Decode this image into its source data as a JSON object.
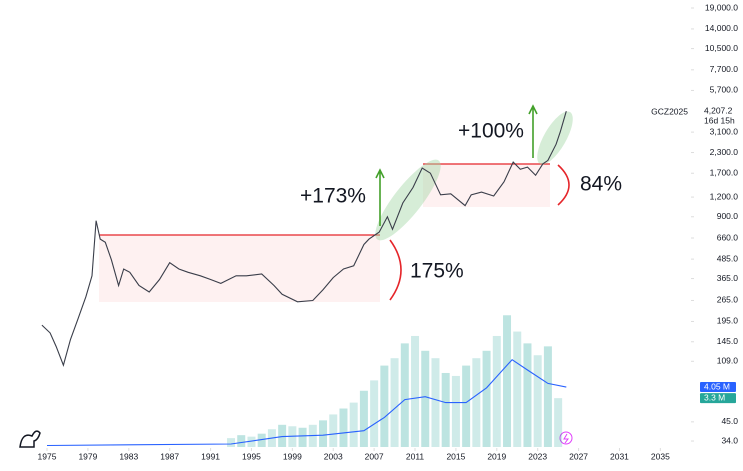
{
  "chart_data": {
    "type": "line",
    "symbol": "GCZ2025",
    "countdown": "16d 15h",
    "log_scale": true,
    "grid": false,
    "xlim": [
      1970.4,
      2037.9
    ],
    "xticks": [
      1975,
      1979,
      1983,
      1987,
      1991,
      1995,
      1999,
      2003,
      2007,
      2011,
      2015,
      2019,
      2023,
      2027,
      2031,
      2035
    ],
    "ylim": [
      25.4,
      21360
    ],
    "yticks": [
      {
        "value": 19000,
        "label": "19,000.0"
      },
      {
        "value": 14000,
        "label": "14,000.0"
      },
      {
        "value": 10500,
        "label": "10,500.0"
      },
      {
        "value": 7700,
        "label": "7,700.0"
      },
      {
        "value": 5700,
        "label": "5,700.0"
      },
      {
        "value": 3100,
        "label": "3,100.0"
      },
      {
        "value": 2300,
        "label": "2,300.0"
      },
      {
        "value": 1700,
        "label": "1,700.0"
      },
      {
        "value": 1200,
        "label": "1,200.0"
      },
      {
        "value": 900,
        "label": "900.0"
      },
      {
        "value": 660,
        "label": "660.0"
      },
      {
        "value": 485,
        "label": "485.0"
      },
      {
        "value": 365,
        "label": "365.0"
      },
      {
        "value": 265,
        "label": "265.0"
      },
      {
        "value": 195,
        "label": "195.0"
      },
      {
        "value": 145,
        "label": "145.0"
      },
      {
        "value": 109,
        "label": "109.0"
      },
      {
        "value": 45,
        "label": "45.0"
      },
      {
        "value": 34,
        "label": "34.0"
      }
    ],
    "y2lim": [
      0,
      30.2
    ],
    "series": [
      {
        "kind": "price",
        "color": "#3a3e4a",
        "x": [
          1974.5,
          1975.3,
          1975.9,
          1976.6,
          1977.3,
          1978,
          1978.8,
          1979.4,
          1979.8,
          1980.2,
          1980.7,
          1981.3,
          1982,
          1982.5,
          1983.1,
          1984,
          1985,
          1986,
          1987,
          1987.9,
          1988.8,
          1990,
          1991,
          1992,
          1993.5,
          1994.5,
          1996,
          1997.2,
          1998,
          1999.5,
          2001,
          2002,
          2003,
          2004,
          2005,
          2006,
          2006.5,
          2007.5,
          2008.3,
          2008.8,
          2009.8,
          2010.8,
          2011.7,
          2012.5,
          2013.5,
          2014.5,
          2015.9,
          2016.5,
          2017.5,
          2018.7,
          2019.7,
          2020.6,
          2021.3,
          2022,
          2022.8,
          2023.5,
          2024,
          2024.8,
          2025.2,
          2025.8
        ],
        "values": [
          185,
          165,
          135,
          103,
          150,
          200,
          280,
          380,
          850,
          650,
          620,
          480,
          330,
          420,
          400,
          330,
          300,
          360,
          460,
          420,
          400,
          380,
          360,
          340,
          380,
          380,
          390,
          330,
          290,
          260,
          265,
          310,
          370,
          420,
          440,
          600,
          650,
          720,
          900,
          750,
          1100,
          1380,
          1836,
          1700,
          1240,
          1260,
          1060,
          1240,
          1290,
          1220,
          1500,
          2000,
          1800,
          1860,
          1650,
          1950,
          2050,
          2600,
          3100,
          4207.2
        ],
        "value_labels": [
          null,
          null,
          null,
          null,
          null,
          null,
          null,
          null,
          null,
          null,
          null,
          null,
          null,
          null,
          null,
          null,
          null,
          null,
          null,
          null,
          null,
          null,
          null,
          null,
          null,
          null,
          null,
          null,
          null,
          null,
          null,
          null,
          null,
          null,
          null,
          null,
          null,
          null,
          null,
          null,
          null,
          null,
          null,
          null,
          null,
          null,
          null,
          null,
          null,
          null,
          null,
          null,
          null,
          null,
          null,
          null,
          null,
          null,
          null,
          "4,207.2"
        ]
      },
      {
        "kind": "volume",
        "axis": "y2",
        "color": "#26a69a",
        "x": [
          1993,
          1994,
          1995,
          1996,
          1997,
          1998,
          1999,
          2000,
          2001,
          2002,
          2003,
          2004,
          2005,
          2006,
          2007,
          2008,
          2009,
          2010,
          2011,
          2012,
          2013,
          2014,
          2015,
          2016,
          2017,
          2018,
          2019,
          2020,
          2021,
          2022,
          2023,
          2024,
          2025
        ],
        "values": [
          0.6,
          0.8,
          0.7,
          0.9,
          1.2,
          1.5,
          1.4,
          1.3,
          1.5,
          1.8,
          2.2,
          2.6,
          3.0,
          3.8,
          4.5,
          5.5,
          6.0,
          7.0,
          7.5,
          6.5,
          6.0,
          5.0,
          4.8,
          5.5,
          6.0,
          6.5,
          7.5,
          8.9,
          7.8,
          7.0,
          6.2,
          6.8,
          3.3
        ],
        "value_labels": [
          null,
          null,
          null,
          null,
          null,
          null,
          null,
          null,
          null,
          null,
          null,
          null,
          null,
          null,
          null,
          null,
          null,
          null,
          null,
          null,
          null,
          null,
          null,
          null,
          null,
          null,
          null,
          null,
          null,
          null,
          null,
          null,
          "3.3 M"
        ]
      },
      {
        "kind": "volume-ma",
        "axis": "y2",
        "color": "#2962ff",
        "x": [
          1975,
          1993,
          1998,
          2002,
          2006,
          2008,
          2010,
          2012,
          2014,
          2016,
          2018,
          2020.5,
          2022,
          2024,
          2025.8
        ],
        "values": [
          0.1,
          0.2,
          0.7,
          0.8,
          1.1,
          2.0,
          3.2,
          3.4,
          3.0,
          3.0,
          4.0,
          5.9,
          5.2,
          4.3,
          4.05
        ],
        "value_labels": [
          null,
          null,
          null,
          null,
          null,
          null,
          null,
          null,
          null,
          null,
          null,
          null,
          null,
          null,
          "4.05 M"
        ]
      }
    ],
    "annotations": [
      {
        "text": "+173%",
        "color": "#43a02a"
      },
      {
        "text": "+100%",
        "color": "#43a02a"
      },
      {
        "text": "175%",
        "color": "#e5252a"
      },
      {
        "text": "84%",
        "color": "#e5252a"
      }
    ]
  }
}
